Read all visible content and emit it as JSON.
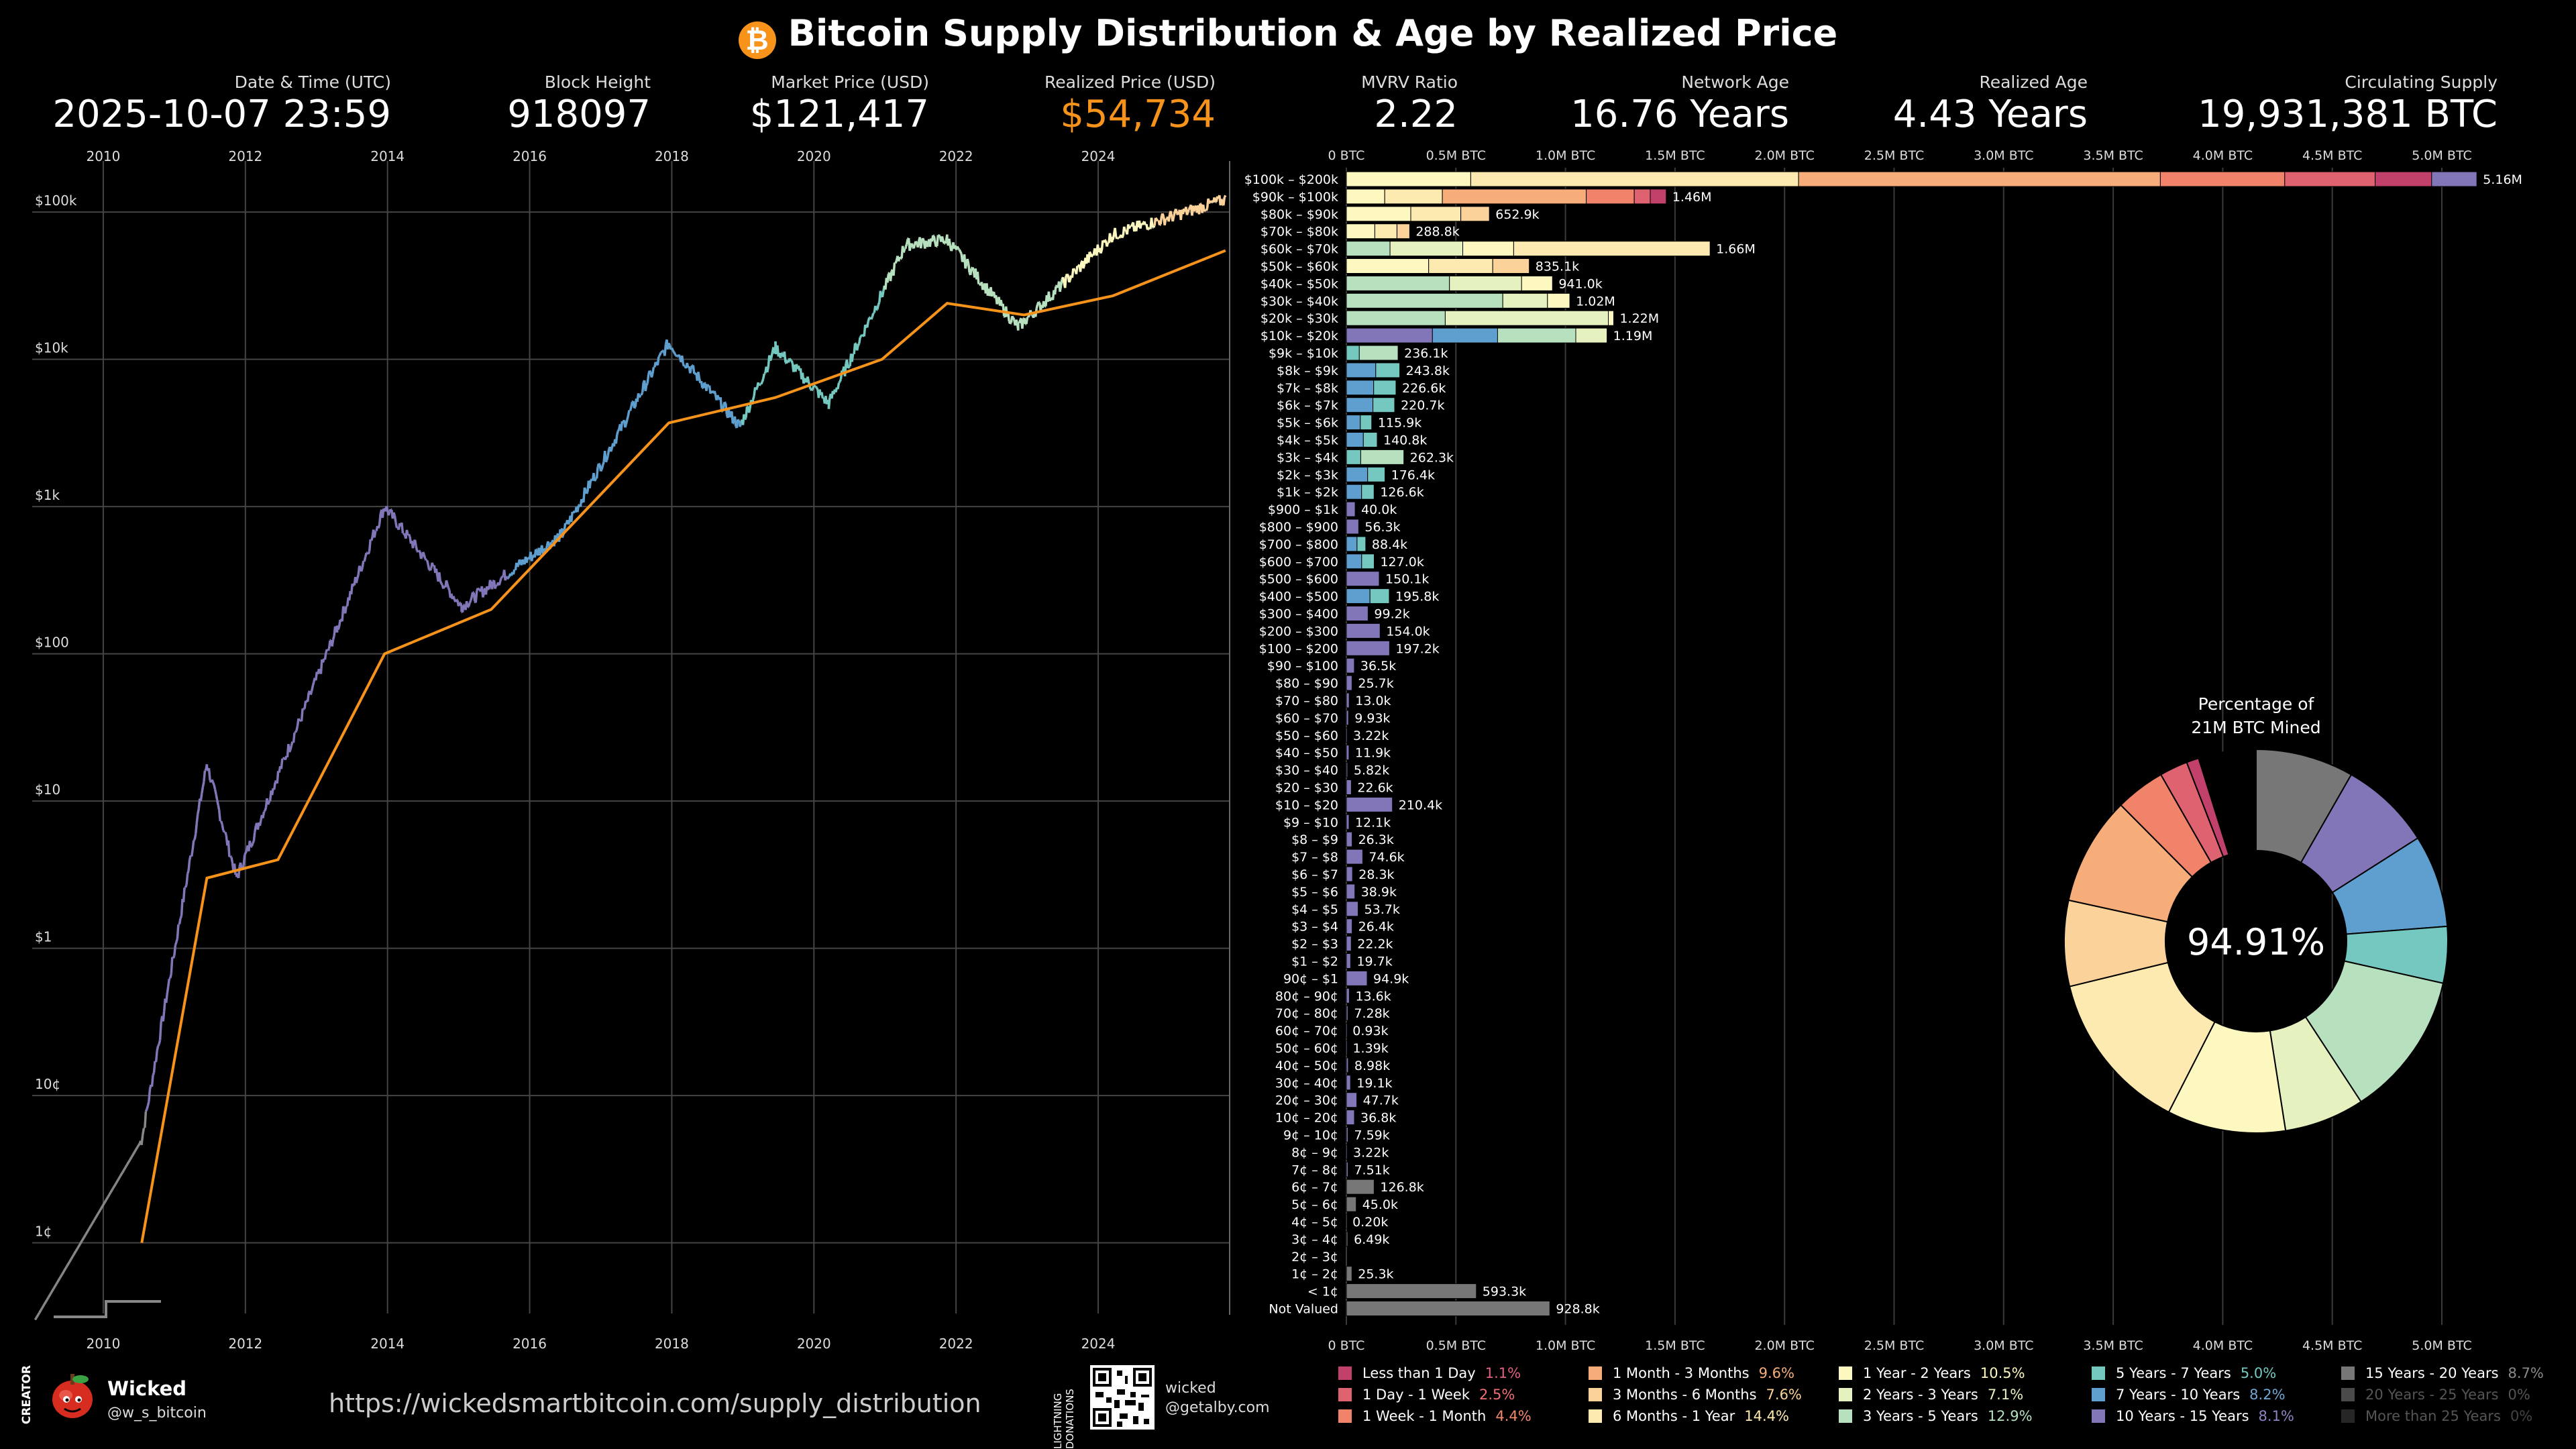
{
  "title": "Bitcoin Supply Distribution & Age by Realized Price",
  "logo_glyph": "₿",
  "stats": [
    {
      "label": "Date & Time (UTC)",
      "value": "2025-10-07 23:59",
      "color": "#ffffff"
    },
    {
      "label": "Block Height",
      "value": "918097",
      "color": "#ffffff"
    },
    {
      "label": "Market Price (USD)",
      "value": "$121,417",
      "color": "#ffffff"
    },
    {
      "label": "Realized Price (USD)",
      "value": "$54,734",
      "color": "#f7931a"
    },
    {
      "label": "MVRV Ratio",
      "value": "2.22",
      "color": "#ffffff"
    },
    {
      "label": "Network Age",
      "value": "16.76 Years",
      "color": "#ffffff"
    },
    {
      "label": "Realized Age",
      "value": "4.43 Years",
      "color": "#ffffff"
    },
    {
      "label": "Circulating Supply",
      "value": "19,931,381 BTC",
      "color": "#ffffff"
    }
  ],
  "chart_data": [
    {
      "type": "line",
      "y_scale": "log",
      "x_ticks": [
        "2010",
        "2012",
        "2014",
        "2016",
        "2018",
        "2020",
        "2022",
        "2024"
      ],
      "y_ticks": [
        "$100k",
        "$10k",
        "$1k",
        "$100",
        "$10",
        "$1",
        "10¢",
        "1¢"
      ],
      "series": [
        {
          "name": "",
          "color": "price-by-age-band",
          "points": [
            [
              "2009-01",
              "0.003"
            ],
            [
              "2010-07",
              "0.05"
            ],
            [
              "2011-06",
              "18"
            ],
            [
              "2011-11",
              "3"
            ],
            [
              "2013-04",
              "150"
            ],
            [
              "2013-12",
              "1000"
            ],
            [
              "2015-01",
              "210"
            ],
            [
              "2016-06",
              "650"
            ],
            [
              "2017-12",
              "13000"
            ],
            [
              "2018-12",
              "3500"
            ],
            [
              "2019-06",
              "12000"
            ],
            [
              "2020-03",
              "5000"
            ],
            [
              "2021-04",
              "60000"
            ],
            [
              "2021-11",
              "65000"
            ],
            [
              "2022-11",
              "16500"
            ],
            [
              "2024-03",
              "70000"
            ],
            [
              "2025-10",
              "121417"
            ]
          ]
        },
        {
          "name": "",
          "color": "#f7931a",
          "points": [
            [
              "2010-07",
              "0.01"
            ],
            [
              "2011-06",
              "3"
            ],
            [
              "2012-06",
              "4"
            ],
            [
              "2013-12",
              "100"
            ],
            [
              "2015-06",
              "200"
            ],
            [
              "2017-12",
              "3700"
            ],
            [
              "2019-06",
              "5500"
            ],
            [
              "2020-12",
              "10000"
            ],
            [
              "2021-11",
              "24000"
            ],
            [
              "2022-12",
              "20000"
            ],
            [
              "2024-03",
              "27000"
            ],
            [
              "2025-10",
              "54734"
            ]
          ]
        }
      ]
    },
    {
      "type": "bar",
      "orientation": "horizontal",
      "stacked": true,
      "x_ticks": [
        "0 BTC",
        "0.5M BTC",
        "1.0M BTC",
        "1.5M BTC",
        "2.0M BTC",
        "2.5M BTC",
        "3.0M BTC",
        "3.5M BTC",
        "4.0M BTC",
        "4.5M BTC",
        "5.0M BTC"
      ],
      "xlim": [
        0,
        5.0
      ],
      "rows": [
        {
          "label": "$100k – $200k",
          "total": "5.16M",
          "v": 5.16,
          "dom": 7
        },
        {
          "label": "$90k – $100k",
          "total": "1.46M",
          "v": 1.46,
          "dom": 7
        },
        {
          "label": "$80k – $90k",
          "total": "652.9k",
          "v": 0.6529,
          "dom": 8
        },
        {
          "label": "$70k – $80k",
          "total": "288.8k",
          "v": 0.2888,
          "dom": 8
        },
        {
          "label": "$60k – $70k",
          "total": "1.66M",
          "v": 1.66,
          "dom": 8
        },
        {
          "label": "$50k – $60k",
          "total": "835.1k",
          "v": 0.8351,
          "dom": 8
        },
        {
          "label": "$40k – $50k",
          "total": "941.0k",
          "v": 0.941,
          "dom": 9
        },
        {
          "label": "$30k – $40k",
          "total": "1.02M",
          "v": 1.02,
          "dom": 10
        },
        {
          "label": "$20k – $30k",
          "total": "1.22M",
          "v": 1.22,
          "dom": 9
        },
        {
          "label": "$10k – $20k",
          "total": "1.19M",
          "v": 1.19,
          "dom": 12
        },
        {
          "label": "$9k – $10k",
          "total": "236.1k",
          "v": 0.2361,
          "dom": 11
        },
        {
          "label": "$8k – $9k",
          "total": "243.8k",
          "v": 0.2438,
          "dom": 12
        },
        {
          "label": "$7k – $8k",
          "total": "226.6k",
          "v": 0.2266,
          "dom": 12
        },
        {
          "label": "$6k – $7k",
          "total": "220.7k",
          "v": 0.2207,
          "dom": 12
        },
        {
          "label": "$5k – $6k",
          "total": "115.9k",
          "v": 0.1159,
          "dom": 12
        },
        {
          "label": "$4k – $5k",
          "total": "140.8k",
          "v": 0.1408,
          "dom": 12
        },
        {
          "label": "$3k – $4k",
          "total": "262.3k",
          "v": 0.2623,
          "dom": 11
        },
        {
          "label": "$2k – $3k",
          "total": "176.4k",
          "v": 0.1764,
          "dom": 12
        },
        {
          "label": "$1k – $2k",
          "total": "126.6k",
          "v": 0.1266,
          "dom": 12
        },
        {
          "label": "$900 – $1k",
          "total": "40.0k",
          "v": 0.04,
          "dom": 13
        },
        {
          "label": "$800 – $900",
          "total": "56.3k",
          "v": 0.0563,
          "dom": 13
        },
        {
          "label": "$700 – $800",
          "total": "88.4k",
          "v": 0.0884,
          "dom": 12
        },
        {
          "label": "$600 – $700",
          "total": "127.0k",
          "v": 0.127,
          "dom": 12
        },
        {
          "label": "$500 – $600",
          "total": "150.1k",
          "v": 0.1501,
          "dom": 13
        },
        {
          "label": "$400 – $500",
          "total": "195.8k",
          "v": 0.1958,
          "dom": 12
        },
        {
          "label": "$300 – $400",
          "total": "99.2k",
          "v": 0.0992,
          "dom": 13
        },
        {
          "label": "$200 – $300",
          "total": "154.0k",
          "v": 0.154,
          "dom": 13
        },
        {
          "label": "$100 – $200",
          "total": "197.2k",
          "v": 0.1972,
          "dom": 13
        },
        {
          "label": "$90 – $100",
          "total": "36.5k",
          "v": 0.0365,
          "dom": 13
        },
        {
          "label": "$80 – $90",
          "total": "25.7k",
          "v": 0.0257,
          "dom": 13
        },
        {
          "label": "$70 – $80",
          "total": "13.0k",
          "v": 0.013,
          "dom": 13
        },
        {
          "label": "$60 – $70",
          "total": "9.93k",
          "v": 0.00993,
          "dom": 13
        },
        {
          "label": "$50 – $60",
          "total": "3.22k",
          "v": 0.00322,
          "dom": 13
        },
        {
          "label": "$40 – $50",
          "total": "11.9k",
          "v": 0.0119,
          "dom": 13
        },
        {
          "label": "$30 – $40",
          "total": "5.82k",
          "v": 0.00582,
          "dom": 13
        },
        {
          "label": "$20 – $30",
          "total": "22.6k",
          "v": 0.0226,
          "dom": 13
        },
        {
          "label": "$10 – $20",
          "total": "210.4k",
          "v": 0.2104,
          "dom": 13
        },
        {
          "label": "$9 – $10",
          "total": "12.1k",
          "v": 0.0121,
          "dom": 13
        },
        {
          "label": "$8 – $9",
          "total": "26.3k",
          "v": 0.0263,
          "dom": 13
        },
        {
          "label": "$7 – $8",
          "total": "74.6k",
          "v": 0.0746,
          "dom": 13
        },
        {
          "label": "$6 – $7",
          "total": "28.3k",
          "v": 0.0283,
          "dom": 13
        },
        {
          "label": "$5 – $6",
          "total": "38.9k",
          "v": 0.0389,
          "dom": 13
        },
        {
          "label": "$4 – $5",
          "total": "53.7k",
          "v": 0.0537,
          "dom": 13
        },
        {
          "label": "$3 – $4",
          "total": "26.4k",
          "v": 0.0264,
          "dom": 13
        },
        {
          "label": "$2 – $3",
          "total": "22.2k",
          "v": 0.0222,
          "dom": 13
        },
        {
          "label": "$1 – $2",
          "total": "19.7k",
          "v": 0.0197,
          "dom": 13
        },
        {
          "label": "90¢ – $1",
          "total": "94.9k",
          "v": 0.0949,
          "dom": 13
        },
        {
          "label": "80¢ – 90¢",
          "total": "13.6k",
          "v": 0.0136,
          "dom": 13
        },
        {
          "label": "70¢ – 80¢",
          "total": "7.28k",
          "v": 0.00728,
          "dom": 13
        },
        {
          "label": "60¢ – 70¢",
          "total": "0.93k",
          "v": 0.00093,
          "dom": 13
        },
        {
          "label": "50¢ – 60¢",
          "total": "1.39k",
          "v": 0.00139,
          "dom": 13
        },
        {
          "label": "40¢ – 50¢",
          "total": "8.98k",
          "v": 0.00898,
          "dom": 13
        },
        {
          "label": "30¢ – 40¢",
          "total": "19.1k",
          "v": 0.0191,
          "dom": 13
        },
        {
          "label": "20¢ – 30¢",
          "total": "47.7k",
          "v": 0.0477,
          "dom": 13
        },
        {
          "label": "10¢ – 20¢",
          "total": "36.8k",
          "v": 0.0368,
          "dom": 13
        },
        {
          "label": "9¢ – 10¢",
          "total": "7.59k",
          "v": 0.00759,
          "dom": 13
        },
        {
          "label": "8¢ – 9¢",
          "total": "3.22k",
          "v": 0.00322,
          "dom": 13
        },
        {
          "label": "7¢ – 8¢",
          "total": "7.51k",
          "v": 0.00751,
          "dom": 13
        },
        {
          "label": "6¢ – 7¢",
          "total": "126.8k",
          "v": 0.1268,
          "dom": 14
        },
        {
          "label": "5¢ – 6¢",
          "total": "45.0k",
          "v": 0.045,
          "dom": 14
        },
        {
          "label": "4¢ – 5¢",
          "total": "0.20k",
          "v": 0.0002,
          "dom": 14
        },
        {
          "label": "3¢ – 4¢",
          "total": "6.49k",
          "v": 0.00649,
          "dom": 14
        },
        {
          "label": "2¢ – 3¢",
          "total": "",
          "v": 0,
          "dom": 14
        },
        {
          "label": "1¢ – 2¢",
          "total": "25.3k",
          "v": 0.0253,
          "dom": 14
        },
        {
          "label": "< 1¢",
          "total": "593.3k",
          "v": 0.5933,
          "dom": 14
        },
        {
          "label": "Not Valued",
          "total": "928.8k",
          "v": 0.9288,
          "dom": 14
        }
      ]
    },
    {
      "type": "pie",
      "title_line1": "Percentage of",
      "title_line2": "21M BTC Mined",
      "center_label": "94.91%",
      "slices": [
        {
          "name": "15 Years - 20 Years",
          "value": 8.7
        },
        {
          "name": "10 Years - 15 Years",
          "value": 8.1
        },
        {
          "name": "7 Years - 10 Years",
          "value": 8.2
        },
        {
          "name": "5 Years - 7 Years",
          "value": 5.0
        },
        {
          "name": "3 Years - 5 Years",
          "value": 12.9
        },
        {
          "name": "2 Years - 3 Years",
          "value": 7.1
        },
        {
          "name": "1 Year - 2 Years",
          "value": 10.5
        },
        {
          "name": "6 Months - 1 Year",
          "value": 14.4
        },
        {
          "name": "3 Months - 6 Months",
          "value": 7.6
        },
        {
          "name": "1 Month - 3 Months",
          "value": 9.6
        },
        {
          "name": "1 Week - 1 Month",
          "value": 4.4
        },
        {
          "name": "1 Day - 1 Week",
          "value": 2.5
        },
        {
          "name": "Less than 1 Day",
          "value": 1.1
        },
        {
          "name": "",
          "value": 5.09
        }
      ]
    }
  ],
  "legend": [
    {
      "name": "Less than 1 Day",
      "pct": "1.1%",
      "color": "#c2416b",
      "pctColor": "#e0607e"
    },
    {
      "name": "1 Day - 1 Week",
      "pct": "2.5%",
      "color": "#de6270",
      "pctColor": "#ef6f74"
    },
    {
      "name": "1 Week - 1 Month",
      "pct": "4.4%",
      "color": "#f0836a",
      "pctColor": "#f2876b"
    },
    {
      "name": "1 Month - 3 Months",
      "pct": "9.6%",
      "color": "#f7ad7a",
      "pctColor": "#f7ad7a"
    },
    {
      "name": "3 Months - 6 Months",
      "pct": "7.6%",
      "color": "#fbd29a",
      "pctColor": "#fbd29a"
    },
    {
      "name": "6 Months - 1 Year",
      "pct": "14.4%",
      "color": "#fdeab0",
      "pctColor": "#fdeab0"
    },
    {
      "name": "1 Year - 2 Years",
      "pct": "10.5%",
      "color": "#fdf7c0",
      "pctColor": "#fdf7c0"
    },
    {
      "name": "2 Years - 3 Years",
      "pct": "7.1%",
      "color": "#e5f2bf",
      "pctColor": "#e5f2bf"
    },
    {
      "name": "3 Years - 5 Years",
      "pct": "12.9%",
      "color": "#b7e0bf",
      "pctColor": "#b7e0bf"
    },
    {
      "name": "5 Years - 7 Years",
      "pct": "5.0%",
      "color": "#74c8c0",
      "pctColor": "#74c8c0"
    },
    {
      "name": "7 Years - 10 Years",
      "pct": "8.2%",
      "color": "#5f9fcf",
      "pctColor": "#6fa8d6"
    },
    {
      "name": "10 Years - 15 Years",
      "pct": "8.1%",
      "color": "#8276b8",
      "pctColor": "#8f83c2"
    },
    {
      "name": "15 Years - 20 Years",
      "pct": "8.7%",
      "color": "#777777",
      "pctColor": "#8a8a8a"
    },
    {
      "name": "20 Years - 25 Years",
      "pct": "0%",
      "color": "#4a4a4a",
      "pctColor": "#555555"
    },
    {
      "name": "More than 25 Years",
      "pct": "0%",
      "color": "#262626",
      "pctColor": "#444444"
    }
  ],
  "footer": {
    "creator_vertical": "CREATOR",
    "creator_name": "Wicked",
    "creator_handle": "@w_s_bitcoin",
    "url": "https://wickedsmartbitcoin.com/supply_distribution",
    "donations_vertical": "LIGHTNING DONATIONS",
    "donation_line1": "wicked",
    "donation_line2": "@getalby.com"
  }
}
